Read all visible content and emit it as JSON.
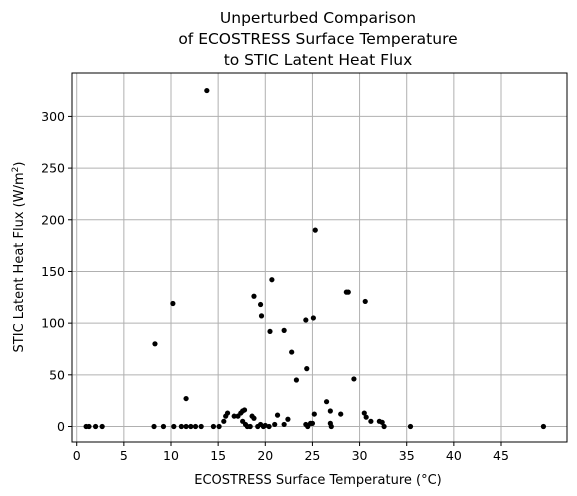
{
  "chart_data": {
    "type": "scatter",
    "title": [
      "Unperturbed Comparison",
      "of ECOSTRESS Surface Temperature",
      "to STIC Latent Heat Flux"
    ],
    "xlabel": "ECOSTRESS Surface Temperature (°C)",
    "ylabel": {
      "text": "STIC Latent Heat Flux (W/m",
      "sup": "2",
      "close": ")"
    },
    "xlim": [
      -0.5,
      52
    ],
    "ylim": [
      -15,
      342
    ],
    "xticks": [
      0,
      5,
      10,
      15,
      20,
      25,
      30,
      35,
      40,
      45
    ],
    "yticks": [
      0,
      50,
      100,
      150,
      200,
      250,
      300
    ],
    "grid": true,
    "marker_color": "#000000",
    "grid_color": "#b0b0b0",
    "series": [
      {
        "points": [
          [
            1.0,
            0
          ],
          [
            1.3,
            0
          ],
          [
            2.0,
            0
          ],
          [
            2.7,
            0
          ],
          [
            8.2,
            0
          ],
          [
            9.2,
            0
          ],
          [
            10.3,
            0
          ],
          [
            11.1,
            0
          ],
          [
            11.6,
            0
          ],
          [
            12.1,
            0
          ],
          [
            12.6,
            0
          ],
          [
            13.2,
            0
          ],
          [
            14.5,
            0
          ],
          [
            15.1,
            0
          ],
          [
            15.6,
            5
          ],
          [
            15.8,
            10
          ],
          [
            16.0,
            13
          ],
          [
            16.7,
            10
          ],
          [
            17.1,
            10
          ],
          [
            17.4,
            13
          ],
          [
            17.6,
            15
          ],
          [
            17.8,
            16
          ],
          [
            17.6,
            5
          ],
          [
            17.9,
            2
          ],
          [
            18.1,
            0
          ],
          [
            18.4,
            0
          ],
          [
            18.6,
            10
          ],
          [
            18.8,
            8
          ],
          [
            19.2,
            0
          ],
          [
            19.5,
            2
          ],
          [
            19.8,
            0
          ],
          [
            20.0,
            1
          ],
          [
            20.4,
            0
          ],
          [
            21.0,
            2
          ],
          [
            21.3,
            11
          ],
          [
            22.0,
            2
          ],
          [
            22.4,
            7
          ],
          [
            24.3,
            2
          ],
          [
            24.5,
            0
          ],
          [
            24.8,
            3
          ],
          [
            25.0,
            3
          ],
          [
            25.2,
            12
          ],
          [
            26.5,
            24
          ],
          [
            26.9,
            15
          ],
          [
            26.9,
            3
          ],
          [
            27.0,
            0
          ],
          [
            28.0,
            12
          ],
          [
            30.5,
            13
          ],
          [
            30.7,
            9
          ],
          [
            31.2,
            5
          ],
          [
            32.1,
            5
          ],
          [
            32.4,
            4
          ],
          [
            32.6,
            0
          ],
          [
            35.4,
            0
          ],
          [
            49.5,
            0
          ],
          [
            8.3,
            80
          ],
          [
            10.2,
            119
          ],
          [
            11.6,
            27
          ],
          [
            13.8,
            325
          ],
          [
            18.8,
            126
          ],
          [
            19.5,
            118
          ],
          [
            19.6,
            107
          ],
          [
            20.5,
            92
          ],
          [
            20.7,
            142
          ],
          [
            22.0,
            93
          ],
          [
            22.8,
            72
          ],
          [
            23.3,
            45
          ],
          [
            24.3,
            103
          ],
          [
            24.4,
            56
          ],
          [
            25.1,
            105
          ],
          [
            25.3,
            190
          ],
          [
            28.6,
            130
          ],
          [
            28.8,
            130
          ],
          [
            29.4,
            46
          ],
          [
            30.6,
            121
          ]
        ]
      }
    ]
  }
}
